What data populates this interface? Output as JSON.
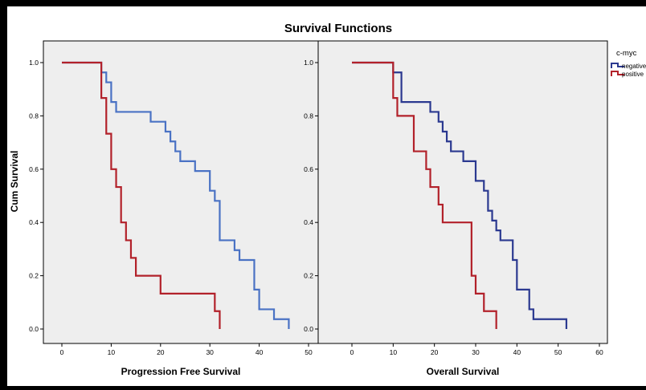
{
  "chart_data": {
    "type": "line",
    "step": true,
    "title": "Survival Functions",
    "ylabel": "Cum Survival",
    "yticks": [
      "0.0",
      "0.2",
      "0.4",
      "0.6",
      "0.8",
      "1.0"
    ],
    "ylim": [
      0,
      1.0
    ],
    "legend": {
      "title": "c-myc",
      "placement": "right",
      "entries": [
        {
          "name": "negative",
          "color": "#2b3990"
        },
        {
          "name": "positive",
          "color": "#b2212a"
        }
      ]
    },
    "panels": [
      {
        "xlabel": "Progression Free Survival",
        "xlim": [
          0,
          50
        ],
        "xticks": [
          "0",
          "10",
          "20",
          "30",
          "40",
          "50"
        ],
        "background": "#eeeeee",
        "series": [
          {
            "name": "negative",
            "color": "#4a72c4",
            "x": [
              0,
              8,
              9,
              10,
              11,
              18,
              21,
              22,
              23,
              24,
              27,
              30,
              31,
              32,
              33,
              35,
              36,
              39,
              40,
              43,
              46
            ],
            "y": [
              1.0,
              0.963,
              0.926,
              0.852,
              0.815,
              0.778,
              0.741,
              0.704,
              0.667,
              0.63,
              0.593,
              0.519,
              0.481,
              0.333,
              0.333,
              0.296,
              0.259,
              0.148,
              0.074,
              0.037,
              0.0
            ]
          },
          {
            "name": "positive",
            "color": "#b2212a",
            "x": [
              0,
              8,
              9,
              10,
              11,
              12,
              13,
              14,
              15,
              20,
              31,
              32
            ],
            "y": [
              1.0,
              0.867,
              0.733,
              0.6,
              0.533,
              0.4,
              0.333,
              0.267,
              0.2,
              0.133,
              0.067,
              0.0
            ]
          }
        ]
      },
      {
        "xlabel": "Overall Survival",
        "xlim": [
          0,
          60
        ],
        "xticks": [
          "0",
          "10",
          "20",
          "30",
          "40",
          "50",
          "60"
        ],
        "background": "#eeeeee",
        "series": [
          {
            "name": "negative",
            "color": "#2b3990",
            "x": [
              0,
              10,
              12,
              19,
              21,
              22,
              23,
              24,
              27,
              30,
              32,
              33,
              34,
              35,
              36,
              39,
              40,
              43,
              44,
              52
            ],
            "y": [
              1.0,
              0.963,
              0.852,
              0.815,
              0.778,
              0.741,
              0.704,
              0.667,
              0.63,
              0.556,
              0.519,
              0.444,
              0.407,
              0.37,
              0.333,
              0.259,
              0.148,
              0.074,
              0.037,
              0.0
            ]
          },
          {
            "name": "positive",
            "color": "#b2212a",
            "x": [
              0,
              10,
              11,
              15,
              18,
              19,
              21,
              22,
              29,
              30,
              32,
              35
            ],
            "y": [
              1.0,
              0.867,
              0.8,
              0.667,
              0.6,
              0.533,
              0.467,
              0.4,
              0.2,
              0.133,
              0.067,
              0.0
            ]
          }
        ]
      }
    ]
  }
}
